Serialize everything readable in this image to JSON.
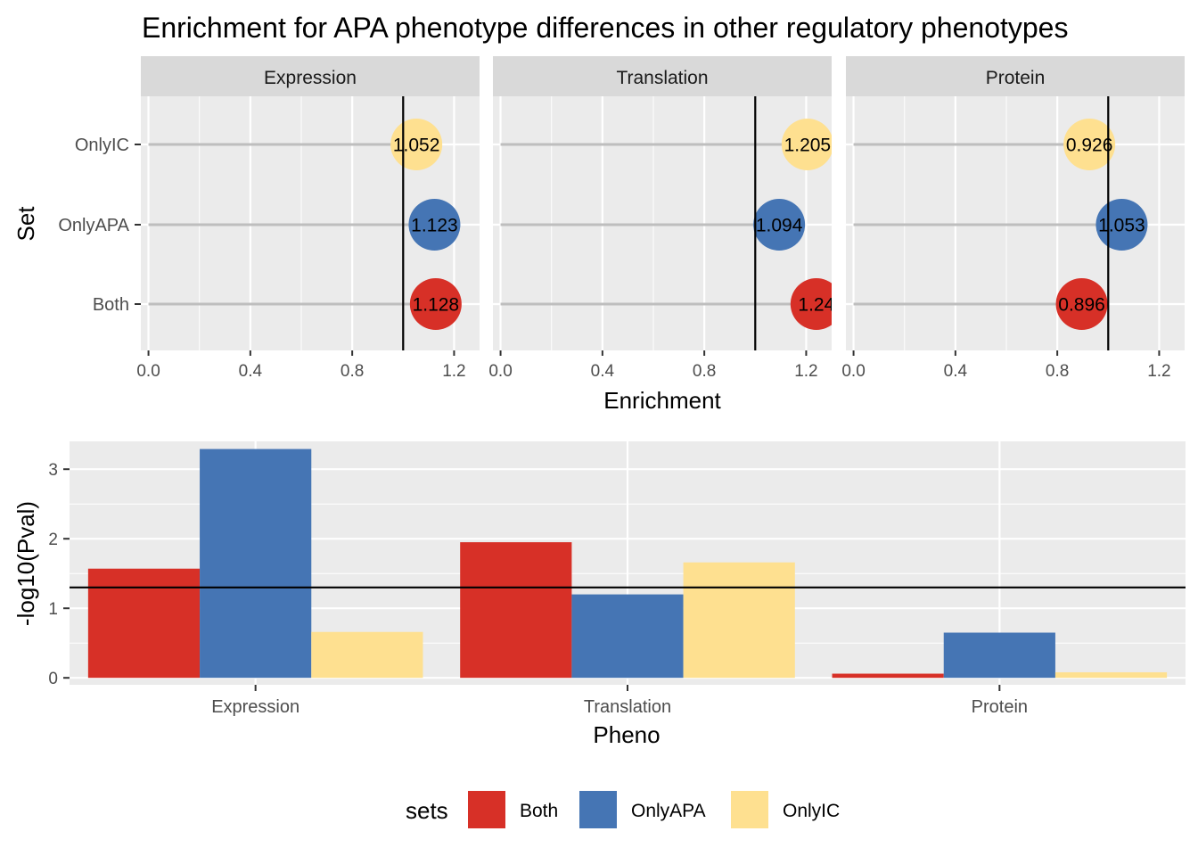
{
  "title": "Enrichment for APA phenotype differences in other regulatory phenotypes",
  "colors": {
    "Both": "#d73027",
    "OnlyAPA": "#4575b4",
    "OnlyIC": "#fee090",
    "panel_bg": "#ebebeb",
    "strip_bg": "#d9d9d9",
    "segment": "#bebebe"
  },
  "chart_data": [
    {
      "type": "scatter",
      "subtype": "lollipop-faceted",
      "title": "Enrichment for APA phenotype differences in other regulatory phenotypes",
      "xlabel": "Enrichment",
      "ylabel": "Set",
      "xlim": [
        -0.03,
        1.3
      ],
      "xticks": [
        0.0,
        0.4,
        0.8,
        1.2
      ],
      "xtick_labels": [
        "0.0",
        "0.4",
        "0.8",
        "1.2"
      ],
      "reference_line_x": 1.0,
      "categories": [
        "OnlyIC",
        "OnlyAPA",
        "Both"
      ],
      "facets": [
        {
          "name": "Expression",
          "values": {
            "OnlyIC": 1.052,
            "OnlyAPA": 1.123,
            "Both": 1.128
          },
          "labels": {
            "OnlyIC": "1.052",
            "OnlyAPA": "1.123",
            "Both": "1.128"
          }
        },
        {
          "name": "Translation",
          "values": {
            "OnlyIC": 1.205,
            "OnlyAPA": 1.094,
            "Both": 1.24
          },
          "labels": {
            "OnlyIC": "1.205",
            "OnlyAPA": "1.094",
            "Both": "1.24"
          }
        },
        {
          "name": "Protein",
          "values": {
            "OnlyIC": 0.926,
            "OnlyAPA": 1.053,
            "Both": 0.896
          },
          "labels": {
            "OnlyIC": "0.926",
            "OnlyAPA": "1.053",
            "Both": "0.896"
          }
        }
      ]
    },
    {
      "type": "bar",
      "xlabel": "Pheno",
      "ylabel": "-log10(Pval)",
      "categories": [
        "Expression",
        "Translation",
        "Protein"
      ],
      "ylim": [
        -0.1,
        3.4
      ],
      "yticks": [
        0,
        1,
        2,
        3
      ],
      "ytick_labels": [
        "0",
        "1",
        "2",
        "3"
      ],
      "reference_line_y": 1.3,
      "series": [
        {
          "name": "Both",
          "values": [
            1.57,
            1.95,
            0.06
          ]
        },
        {
          "name": "OnlyAPA",
          "values": [
            3.29,
            1.2,
            0.65
          ]
        },
        {
          "name": "OnlyIC",
          "values": [
            0.66,
            1.66,
            0.08
          ]
        }
      ],
      "legend": {
        "title": "sets",
        "position": "bottom",
        "entries": [
          "Both",
          "OnlyAPA",
          "OnlyIC"
        ]
      }
    }
  ]
}
